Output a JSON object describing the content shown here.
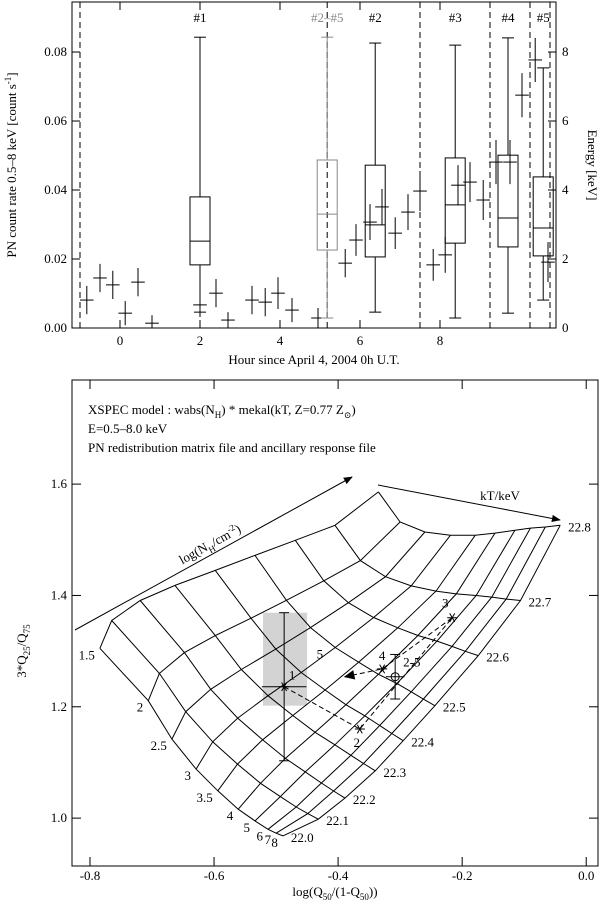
{
  "chart_data": [
    {
      "type": "errorbar",
      "xlabel": "Hour since April 4, 2004 0h U.T.",
      "ylabel": [
        "PN count rate 0.5–8 keV [count s",
        {
          "sup": "-1"
        },
        "]"
      ],
      "y2label": "Energy [keV]",
      "xlim": [
        -1.2,
        10.9
      ],
      "xticks": [
        0,
        2,
        4,
        6,
        8
      ],
      "ylim": [
        0,
        0.0945
      ],
      "yticks": [
        {
          "value": 0,
          "label": "0.00"
        },
        {
          "value": 0.02,
          "label": "0.02"
        },
        {
          "value": 0.04,
          "label": "0.04"
        },
        {
          "value": 0.06,
          "label": "0.06"
        },
        {
          "value": 0.08,
          "label": "0.08"
        }
      ],
      "y2lim": [
        0,
        9.45
      ],
      "y2ticks": [
        0,
        2,
        4,
        6,
        8
      ],
      "dashed_lines_x": [
        -1.0,
        5.18,
        7.5,
        9.25,
        10.25,
        10.75
      ],
      "series": [
        {
          "color": "#000000",
          "x": [
            -0.83,
            -0.5,
            -0.18,
            0.13,
            0.45,
            0.8,
            2.0,
            2.4,
            2.7,
            3.3,
            3.63,
            3.95,
            4.3,
            4.95,
            5.63,
            5.9,
            6.25,
            6.55,
            6.88,
            7.2,
            7.5,
            7.83,
            8.13,
            8.45,
            8.75,
            9.08,
            9.4,
            9.75,
            10.05,
            10.38,
            10.7
          ],
          "values": [
            0.0081,
            0.0145,
            0.0125,
            0.0043,
            0.0133,
            0.0014,
            0.0067,
            0.0101,
            0.0023,
            0.0081,
            0.0075,
            0.0101,
            0.0052,
            0.0029,
            0.0188,
            0.0255,
            0.0307,
            0.0351,
            0.0275,
            0.0336,
            0.0397,
            0.0183,
            0.0212,
            0.0414,
            0.0423,
            0.0371,
            0.0481,
            0.0481,
            0.0675,
            0.0777,
            0.0191
          ],
          "xerr": [
            0.17,
            0.17,
            0.17,
            0.17,
            0.17,
            0.17,
            0.17,
            0.17,
            0.17,
            0.17,
            0.17,
            0.17,
            0.17,
            0.17,
            0.17,
            0.17,
            0.17,
            0.17,
            0.17,
            0.17,
            0.17,
            0.17,
            0.17,
            0.17,
            0.17,
            0.17,
            0.17,
            0.17,
            0.17,
            0.17,
            0.17
          ],
          "yerr": [
            0.0041,
            0.0041,
            0.0041,
            0.0035,
            0.0041,
            0.0023,
            0.0035,
            0.0041,
            0.0023,
            0.0041,
            0.0041,
            0.0046,
            0.0035,
            0.0029,
            0.0041,
            0.0046,
            0.0052,
            0.0052,
            0.0046,
            0.0052,
            0.0058,
            0.0046,
            0.0052,
            0.0058,
            0.0058,
            0.0058,
            0.0064,
            0.0064,
            0.0064,
            0.0064,
            0.0058
          ]
        }
      ],
      "boxes": [
        {
          "label": "#1",
          "axis": "y2",
          "color": "#000000",
          "x": 2.0,
          "whisker_low": 0.46,
          "q1": 1.83,
          "median": 2.52,
          "q3": 3.8,
          "whisker_high": 8.43
        },
        {
          "label": "#2–#5",
          "axis": "y2",
          "color": "#888888",
          "x": 5.18,
          "whisker_low": 0.29,
          "q1": 2.26,
          "median": 3.3,
          "q3": 4.87,
          "whisker_high": 8.43
        },
        {
          "label": "#2",
          "axis": "y2",
          "color": "#000000",
          "x": 6.38,
          "whisker_low": 0.46,
          "q1": 2.06,
          "median": 2.99,
          "q3": 4.72,
          "whisker_high": 8.26
        },
        {
          "label": "#3",
          "axis": "y2",
          "color": "#000000",
          "x": 8.38,
          "whisker_low": 0.29,
          "q1": 2.46,
          "median": 3.57,
          "q3": 4.93,
          "whisker_high": 8.2
        },
        {
          "label": "#4",
          "axis": "y2",
          "color": "#000000",
          "x": 9.7,
          "whisker_low": 0.43,
          "q1": 2.35,
          "median": 3.19,
          "q3": 5.01,
          "whisker_high": 8.41
        },
        {
          "label": "#5",
          "axis": "y2",
          "color": "#000000",
          "x": 10.58,
          "whisker_low": 0.81,
          "q1": 2.09,
          "median": 2.9,
          "q3": 4.38,
          "whisker_high": 7.54
        }
      ]
    },
    {
      "type": "mesh",
      "annotations": [
        [
          "XSPEC model : wabs(N",
          {
            "sub": "H"
          },
          ") * mekal(kT, Z=0.77 Z",
          {
            "sub": "⊙"
          },
          ")"
        ],
        [
          "E=0.5–8.0 keV"
        ],
        [
          "PN redistribution matrix file and ancillary response file"
        ]
      ],
      "xlabel": [
        "log(Q",
        {
          "sub": "50"
        },
        "/(1-Q",
        {
          "sub": "50"
        },
        "))"
      ],
      "ylabel": [
        "3*Q",
        {
          "sub": "25"
        },
        "/Q",
        {
          "sub": "75"
        }
      ],
      "nh_arrow_label": [
        "log(N",
        {
          "sub": "H"
        },
        "/cm",
        {
          "sup": "-2"
        },
        ")"
      ],
      "kt_arrow_label": "kT/keV",
      "xlim": [
        -0.829,
        0.019
      ],
      "xticks": [
        -0.8,
        -0.6,
        -0.4,
        -0.2,
        {
          "value": 0,
          "label": "0.0"
        }
      ],
      "ylim": [
        0.914,
        1.787
      ],
      "yticks": [
        {
          "value": 1,
          "label": "1.0"
        },
        1.2,
        1.4,
        1.6
      ],
      "kt_values": [
        1.5,
        2,
        2.5,
        3,
        3.5,
        4,
        5,
        6,
        7,
        8
      ],
      "nh_values": [
        {
          "value": 22,
          "label": "22.0"
        },
        22.1,
        22.2,
        22.3,
        22.4,
        22.5,
        22.6,
        22.7,
        22.8
      ],
      "edge_ab": [
        [
          -0.784,
          1.305
        ],
        [
          -0.706,
          1.211
        ],
        [
          -0.668,
          1.142
        ],
        [
          -0.629,
          1.088
        ],
        [
          -0.594,
          1.049
        ],
        [
          -0.561,
          1.016
        ],
        [
          -0.534,
          0.995
        ],
        [
          -0.513,
          0.98
        ],
        [
          -0.5,
          0.973
        ],
        [
          -0.489,
          0.968
        ]
      ],
      "edge_dc": [
        [
          -0.335,
          1.586
        ],
        [
          -0.3,
          1.532
        ],
        [
          -0.26,
          1.514
        ],
        [
          -0.219,
          1.508
        ],
        [
          -0.179,
          1.508
        ],
        [
          -0.147,
          1.512
        ],
        [
          -0.115,
          1.517
        ],
        [
          -0.09,
          1.521
        ],
        [
          -0.066,
          1.523
        ],
        [
          -0.042,
          1.526
        ]
      ],
      "edge_ad": [
        [
          -0.784,
          1.305
        ],
        [
          -0.765,
          1.355
        ],
        [
          -0.719,
          1.391
        ],
        [
          -0.663,
          1.418
        ],
        [
          -0.598,
          1.445
        ],
        [
          -0.534,
          1.472
        ],
        [
          -0.469,
          1.499
        ],
        [
          -0.405,
          1.526
        ],
        [
          -0.335,
          1.586
        ]
      ],
      "edge_bc": [
        [
          -0.489,
          0.968
        ],
        [
          -0.432,
          0.998
        ],
        [
          -0.389,
          1.036
        ],
        [
          -0.34,
          1.085
        ],
        [
          -0.295,
          1.139
        ],
        [
          -0.244,
          1.202
        ],
        [
          -0.174,
          1.292
        ],
        [
          -0.106,
          1.391
        ],
        [
          -0.042,
          1.526
        ]
      ],
      "shaded_region": {
        "x": [
          -0.521,
          -0.45
        ],
        "y": [
          1.202,
          1.369
        ],
        "color": "#d3d3d3"
      },
      "points": {
        "labels": [
          "1",
          "2",
          "3",
          "4",
          "5",
          "2-5"
        ],
        "markers": [
          "star",
          "star",
          "star",
          "star",
          "arrow",
          "circle"
        ],
        "x": [
          -0.487,
          -0.365,
          -0.216,
          -0.329,
          -0.389,
          -0.308
        ],
        "values": [
          1.236,
          1.16,
          1.36,
          1.268,
          1.254,
          1.254
        ],
        "xerr": [
          0.036,
          null,
          null,
          null,
          null,
          0.015
        ],
        "yerr": [
          0.133,
          null,
          null,
          null,
          null,
          0.04
        ]
      }
    }
  ]
}
